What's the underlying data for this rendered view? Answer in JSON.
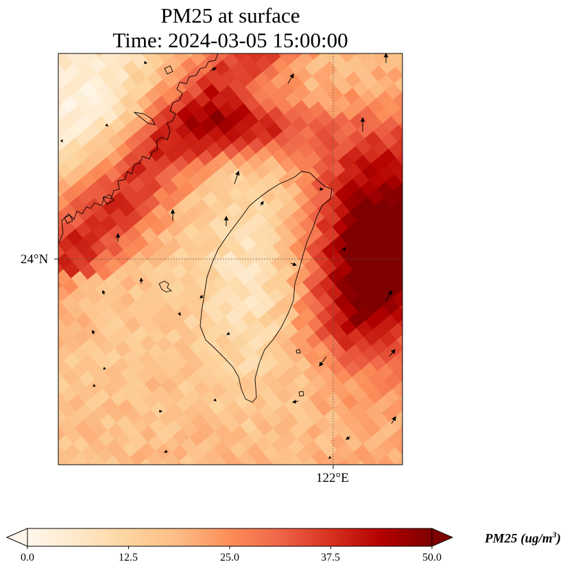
{
  "title_line1": "PM25 at surface",
  "title_line2": "Time: 2024-03-05 15:00:00",
  "lat_label": "24°N",
  "lon_label": "122°E",
  "colorbar": {
    "label": "PM25 (ug/m",
    "label_sup": "3",
    "label_close": ")",
    "ticks": [
      "0.0",
      "12.5",
      "25.0",
      "37.5",
      "50.0"
    ],
    "min": 0,
    "max": 50,
    "colormap": "OrRd",
    "extend": "both"
  },
  "colors": {
    "low": "#fff7ec",
    "mid_low": "#fdd49e",
    "mid": "#fc8d59",
    "high": "#d7301f",
    "max": "#7f0000"
  },
  "map": {
    "projection": "lon-lat",
    "gridlines": "dotted",
    "features": [
      "coastline",
      "wind-vectors",
      "pm25-field"
    ],
    "pm25_pattern": "high concentration band along mainland coast and east of Taiwan, low over Taiwan island and south"
  }
}
